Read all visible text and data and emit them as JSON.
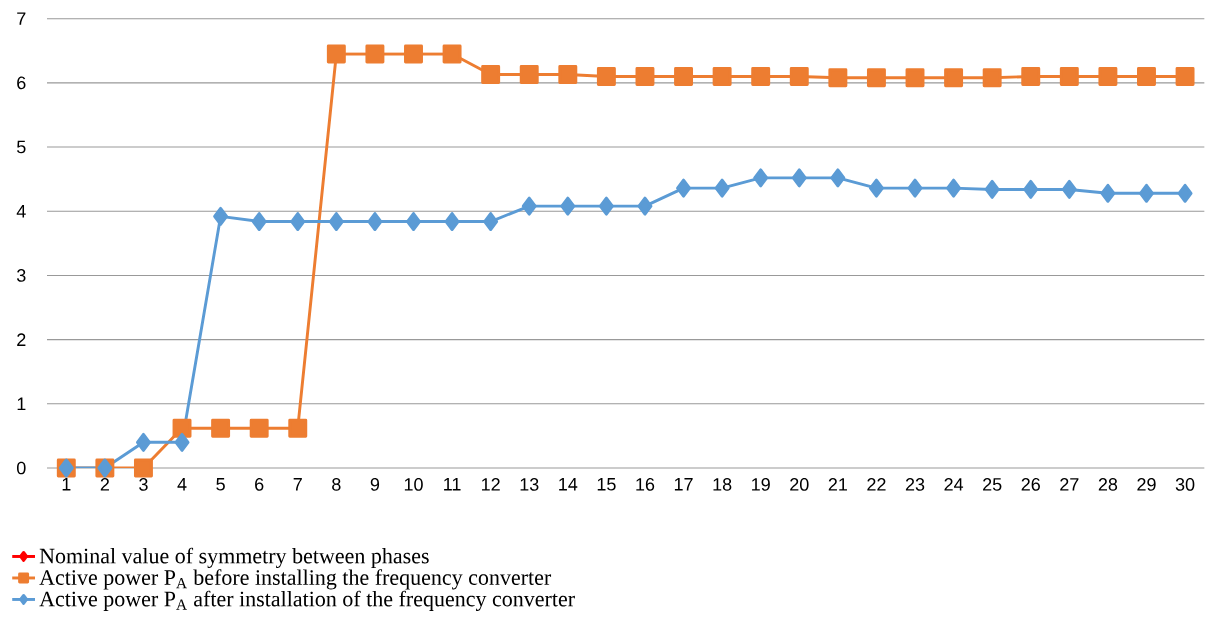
{
  "chart_data": {
    "type": "line",
    "categories": [
      "1",
      "2",
      "3",
      "4",
      "5",
      "6",
      "7",
      "8",
      "9",
      "10",
      "11",
      "12",
      "13",
      "14",
      "15",
      "16",
      "17",
      "18",
      "19",
      "20",
      "21",
      "22",
      "23",
      "24",
      "25",
      "26",
      "27",
      "28",
      "29",
      "30"
    ],
    "series": [
      {
        "name": "Nominal value of symmetry between phases",
        "color": "#ff0000",
        "marker": "diamond",
        "values": [
          null,
          null,
          null,
          null,
          null,
          null,
          null,
          null,
          null,
          null,
          null,
          null,
          null,
          null,
          null,
          null,
          null,
          null,
          null,
          null,
          null,
          null,
          null,
          null,
          null,
          null,
          null,
          null,
          null,
          null
        ]
      },
      {
        "name": "Active power P$_{A}$ before installing the frequency converter",
        "color": "#ed7d31",
        "marker": "square",
        "values": [
          0,
          0,
          0,
          0.62,
          0.62,
          0.62,
          0.62,
          6.45,
          6.45,
          6.45,
          6.45,
          6.13,
          6.13,
          6.13,
          6.1,
          6.1,
          6.1,
          6.1,
          6.1,
          6.1,
          6.08,
          6.08,
          6.08,
          6.08,
          6.08,
          6.1,
          6.1,
          6.1,
          6.1,
          6.1
        ]
      },
      {
        "name": "Active power P$_{A}$ after installation of the frequency converter",
        "color": "#5b9bd5",
        "marker": "diamond",
        "values": [
          0,
          0,
          0.4,
          0.4,
          3.92,
          3.84,
          3.84,
          3.84,
          3.84,
          3.84,
          3.84,
          3.84,
          4.08,
          4.08,
          4.08,
          4.08,
          4.36,
          4.36,
          4.52,
          4.52,
          4.52,
          4.36,
          4.36,
          4.36,
          4.34,
          4.34,
          4.34,
          4.28,
          4.28,
          4.28
        ]
      }
    ],
    "ylim": [
      0,
      7
    ],
    "yticks": [
      0,
      1,
      2,
      3,
      4,
      5,
      6,
      7
    ],
    "grid": "y",
    "legend": "bottom left",
    "line_style": "solid"
  }
}
